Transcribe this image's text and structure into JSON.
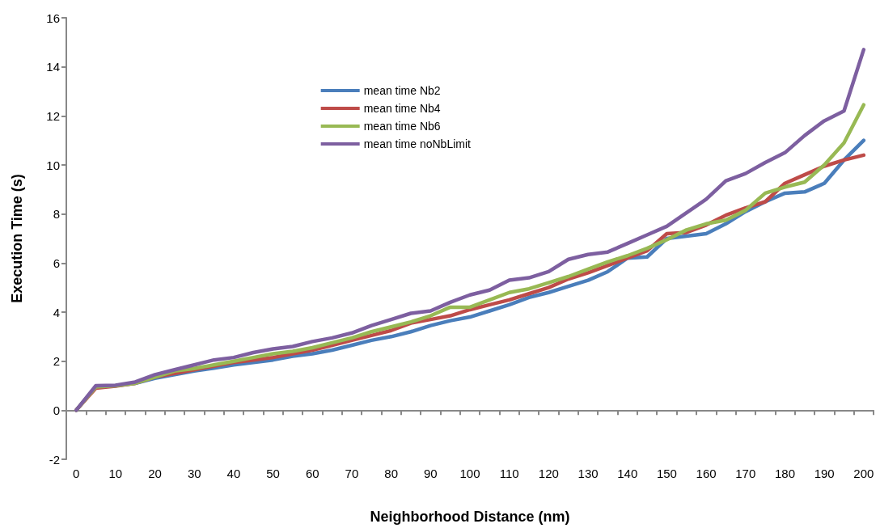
{
  "chart_data": {
    "type": "line",
    "xlabel": "Neighborhood Distance (nm)",
    "ylabel": "Execution Time (s)",
    "categories": [
      "0",
      null,
      "10",
      null,
      "20",
      null,
      "30",
      null,
      "40",
      null,
      "50",
      null,
      "60",
      null,
      "70",
      null,
      "80",
      null,
      "90",
      null,
      "100",
      null,
      "110",
      null,
      "120",
      null,
      "130",
      null,
      "140",
      null,
      "150",
      null,
      "160",
      null,
      "170",
      null,
      "180",
      null,
      "190",
      null,
      "200"
    ],
    "ylim": [
      -2,
      16
    ],
    "yticks": [
      -2,
      0,
      2,
      4,
      6,
      8,
      10,
      12,
      14,
      16
    ],
    "legend": "top center",
    "marker": "none",
    "line_style": "solid",
    "series": [
      {
        "name": "mean time Nb2",
        "color": "#4a7ebb",
        "values": [
          0,
          0.95,
          1.0,
          1.1,
          1.3,
          1.45,
          1.6,
          1.72,
          1.85,
          1.95,
          2.05,
          2.2,
          2.3,
          2.45,
          2.65,
          2.85,
          3.0,
          3.2,
          3.45,
          3.65,
          3.8,
          4.05,
          4.3,
          4.6,
          4.8,
          5.05,
          5.3,
          5.65,
          6.2,
          6.25,
          7.0,
          7.1,
          7.2,
          7.6,
          8.1,
          8.5,
          8.85,
          8.9,
          9.25,
          10.2,
          11.0
        ]
      },
      {
        "name": "mean time Nb4",
        "color": "#be4b48",
        "values": [
          0,
          0.9,
          0.98,
          1.1,
          1.35,
          1.5,
          1.65,
          1.8,
          1.95,
          2.05,
          2.15,
          2.3,
          2.45,
          2.65,
          2.85,
          3.05,
          3.25,
          3.55,
          3.7,
          3.85,
          4.1,
          4.3,
          4.5,
          4.75,
          5.0,
          5.35,
          5.6,
          5.9,
          6.2,
          6.5,
          7.2,
          7.25,
          7.55,
          7.95,
          8.25,
          8.5,
          9.25,
          9.6,
          9.95,
          10.2,
          10.4
        ]
      },
      {
        "name": "mean time Nb6",
        "color": "#98b954",
        "values": [
          0,
          0.95,
          1.0,
          1.1,
          1.35,
          1.6,
          1.7,
          1.85,
          2.0,
          2.15,
          2.3,
          2.4,
          2.55,
          2.75,
          2.95,
          3.2,
          3.4,
          3.6,
          3.85,
          4.2,
          4.2,
          4.5,
          4.8,
          4.95,
          5.2,
          5.45,
          5.75,
          6.05,
          6.3,
          6.6,
          6.95,
          7.35,
          7.6,
          7.75,
          8.15,
          8.85,
          9.1,
          9.3,
          10.0,
          10.9,
          12.45
        ]
      },
      {
        "name": "mean time noNbLimit",
        "color": "#7d5fa0",
        "values": [
          0,
          1.0,
          1.02,
          1.15,
          1.45,
          1.65,
          1.85,
          2.05,
          2.15,
          2.35,
          2.5,
          2.6,
          2.8,
          2.95,
          3.15,
          3.45,
          3.7,
          3.95,
          4.05,
          4.4,
          4.7,
          4.9,
          5.3,
          5.4,
          5.65,
          6.15,
          6.35,
          6.45,
          6.8,
          7.15,
          7.5,
          8.05,
          8.6,
          9.35,
          9.65,
          10.1,
          10.5,
          11.2,
          11.8,
          12.2,
          14.7
        ]
      }
    ]
  }
}
